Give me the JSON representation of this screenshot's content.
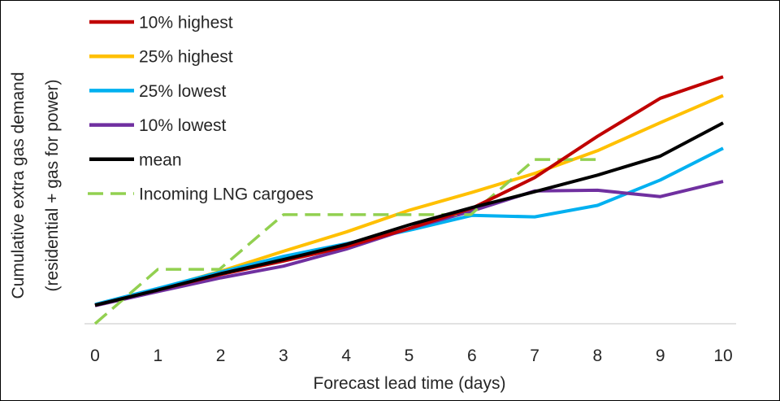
{
  "chart_data": {
    "type": "line",
    "title": "",
    "xlabel": "Forecast lead time (days)",
    "ylabel_lines": [
      "Cumulative extra gas demand",
      "(residential + gas for power)"
    ],
    "x": [
      0,
      1,
      2,
      3,
      4,
      5,
      6,
      7,
      8,
      9,
      10
    ],
    "xlim": [
      0,
      10
    ],
    "ylim": [
      0,
      100
    ],
    "grid": false,
    "legend_position": "top-left",
    "series": [
      {
        "name": "10% highest",
        "color": "#c00000",
        "dash": false,
        "x": [
          0,
          1,
          2,
          3,
          4,
          5,
          6,
          7,
          8,
          9,
          10
        ],
        "values": [
          7.6,
          13.8,
          20.2,
          25.7,
          31.6,
          39.0,
          47.3,
          59.9,
          76.8,
          92.4,
          101.2
        ]
      },
      {
        "name": "25% highest",
        "color": "#ffc000",
        "dash": false,
        "x": [
          0,
          1,
          2,
          3,
          4,
          5,
          6,
          7,
          8,
          9,
          10
        ],
        "values": [
          7.6,
          14.2,
          21.5,
          29.7,
          37.6,
          46.5,
          53.8,
          61.6,
          70.9,
          82.4,
          93.5
        ]
      },
      {
        "name": "25% lowest",
        "color": "#00b0f0",
        "dash": false,
        "x": [
          0,
          1,
          2,
          3,
          4,
          5,
          6,
          7,
          8,
          9,
          10
        ],
        "values": [
          7.9,
          14.5,
          21.2,
          27.6,
          32.8,
          38.3,
          44.4,
          43.8,
          48.5,
          58.9,
          71.9
        ]
      },
      {
        "name": "10% lowest",
        "color": "#7030a0",
        "dash": false,
        "x": [
          0,
          1,
          2,
          3,
          4,
          5,
          6,
          7,
          8,
          9,
          10
        ],
        "values": [
          7.4,
          13.2,
          18.8,
          23.6,
          30.6,
          39.0,
          46.2,
          54.4,
          54.7,
          52.1,
          58.3
        ]
      },
      {
        "name": "mean",
        "color": "#000000",
        "dash": false,
        "x": [
          0,
          1,
          2,
          3,
          4,
          5,
          6,
          7,
          8,
          9,
          10
        ],
        "values": [
          7.6,
          13.8,
          20.5,
          26.3,
          32.5,
          40.5,
          47.6,
          54.1,
          60.9,
          68.7,
          82.3
        ]
      },
      {
        "name": "Incoming LNG cargoes",
        "color": "#92d050",
        "dash": true,
        "x": [
          0,
          1,
          1.98,
          3,
          4,
          5,
          5.98,
          7,
          8
        ],
        "values": [
          0,
          22.3,
          22.3,
          44.7,
          44.7,
          44.7,
          44.7,
          67.3,
          67.3
        ]
      }
    ]
  }
}
